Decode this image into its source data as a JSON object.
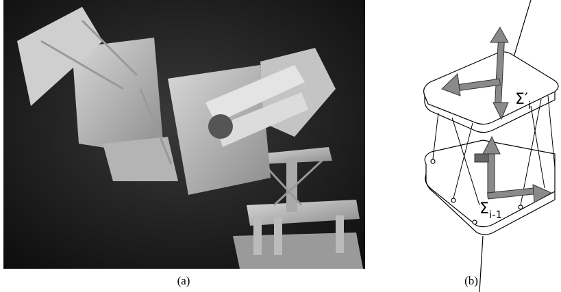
{
  "figure": {
    "panels": [
      {
        "label": "(a)"
      },
      {
        "label": "(b)",
        "frames": [
          {
            "symbol": "Σ′",
            "subscript": "i"
          },
          {
            "symbol": "Σ",
            "subscript": "i-1"
          }
        ]
      }
    ]
  }
}
